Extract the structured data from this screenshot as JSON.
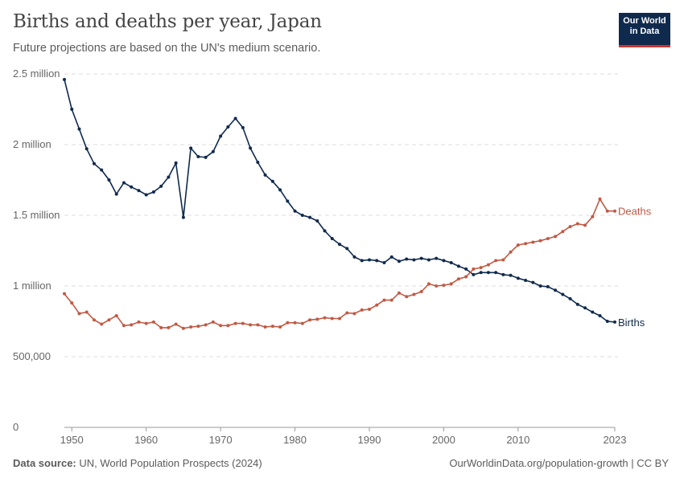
{
  "header": {
    "title": "Births and deaths per year, Japan",
    "subtitle": "Future projections are based on the UN's medium scenario."
  },
  "logo": {
    "line1": "Our World",
    "line2": "in Data"
  },
  "footer": {
    "source_label": "Data source:",
    "source_text": "UN, World Population Prospects (2024)",
    "url": "OurWorldinData.org/population-growth | CC BY"
  },
  "chart_data": {
    "type": "line",
    "title": "Births and deaths per year, Japan",
    "subtitle": "Future projections are based on the UN's medium scenario.",
    "xlim": [
      1949,
      2023
    ],
    "ylim": [
      0,
      2500000
    ],
    "x_ticks": [
      1950,
      1960,
      1970,
      1980,
      1990,
      2000,
      2010,
      2023
    ],
    "y_ticks": [
      {
        "value": 0,
        "label": "0"
      },
      {
        "value": 500000,
        "label": "500,000"
      },
      {
        "value": 1000000,
        "label": "1 million"
      },
      {
        "value": 1500000,
        "label": "1.5 million"
      },
      {
        "value": 2000000,
        "label": "2 million"
      },
      {
        "value": 2500000,
        "label": "2.5 million"
      }
    ],
    "grid": "horizontal-dashed",
    "legend": "inline-right",
    "x": [
      1949,
      1950,
      1951,
      1952,
      1953,
      1954,
      1955,
      1956,
      1957,
      1958,
      1959,
      1960,
      1961,
      1962,
      1963,
      1964,
      1965,
      1966,
      1967,
      1968,
      1969,
      1970,
      1971,
      1972,
      1973,
      1974,
      1975,
      1976,
      1977,
      1978,
      1979,
      1980,
      1981,
      1982,
      1983,
      1984,
      1985,
      1986,
      1987,
      1988,
      1989,
      1990,
      1991,
      1992,
      1993,
      1994,
      1995,
      1996,
      1997,
      1998,
      1999,
      2000,
      2001,
      2002,
      2003,
      2004,
      2005,
      2006,
      2007,
      2008,
      2009,
      2010,
      2011,
      2012,
      2013,
      2014,
      2015,
      2016,
      2017,
      2018,
      2019,
      2020,
      2021,
      2022,
      2023
    ],
    "series": [
      {
        "name": "Births",
        "color": "#0f2a4d",
        "values": [
          2460000,
          2250000,
          2110000,
          1970000,
          1865000,
          1820000,
          1750000,
          1650000,
          1730000,
          1700000,
          1675000,
          1645000,
          1665000,
          1705000,
          1770000,
          1870000,
          1485000,
          1975000,
          1915000,
          1910000,
          1950000,
          2060000,
          2125000,
          2185000,
          2120000,
          1975000,
          1875000,
          1785000,
          1740000,
          1680000,
          1600000,
          1530000,
          1500000,
          1485000,
          1460000,
          1390000,
          1335000,
          1295000,
          1265000,
          1205000,
          1180000,
          1185000,
          1180000,
          1165000,
          1205000,
          1175000,
          1190000,
          1185000,
          1195000,
          1185000,
          1195000,
          1180000,
          1165000,
          1140000,
          1120000,
          1080000,
          1095000,
          1095000,
          1095000,
          1080000,
          1075000,
          1055000,
          1040000,
          1025000,
          1000000,
          995000,
          970000,
          940000,
          910000,
          870000,
          845000,
          815000,
          790000,
          750000,
          745000
        ]
      },
      {
        "name": "Deaths",
        "color": "#c05a45",
        "values": [
          945000,
          880000,
          805000,
          815000,
          760000,
          730000,
          760000,
          790000,
          720000,
          725000,
          745000,
          735000,
          745000,
          705000,
          705000,
          730000,
          700000,
          710000,
          715000,
          725000,
          745000,
          720000,
          720000,
          735000,
          735000,
          725000,
          725000,
          710000,
          715000,
          710000,
          740000,
          740000,
          735000,
          760000,
          765000,
          775000,
          770000,
          770000,
          810000,
          805000,
          830000,
          835000,
          865000,
          900000,
          900000,
          950000,
          925000,
          940000,
          960000,
          1015000,
          1000000,
          1005000,
          1015000,
          1050000,
          1065000,
          1120000,
          1130000,
          1150000,
          1180000,
          1185000,
          1240000,
          1290000,
          1300000,
          1310000,
          1320000,
          1335000,
          1350000,
          1385000,
          1420000,
          1440000,
          1430000,
          1490000,
          1615000,
          1530000,
          1530000
        ]
      }
    ]
  }
}
